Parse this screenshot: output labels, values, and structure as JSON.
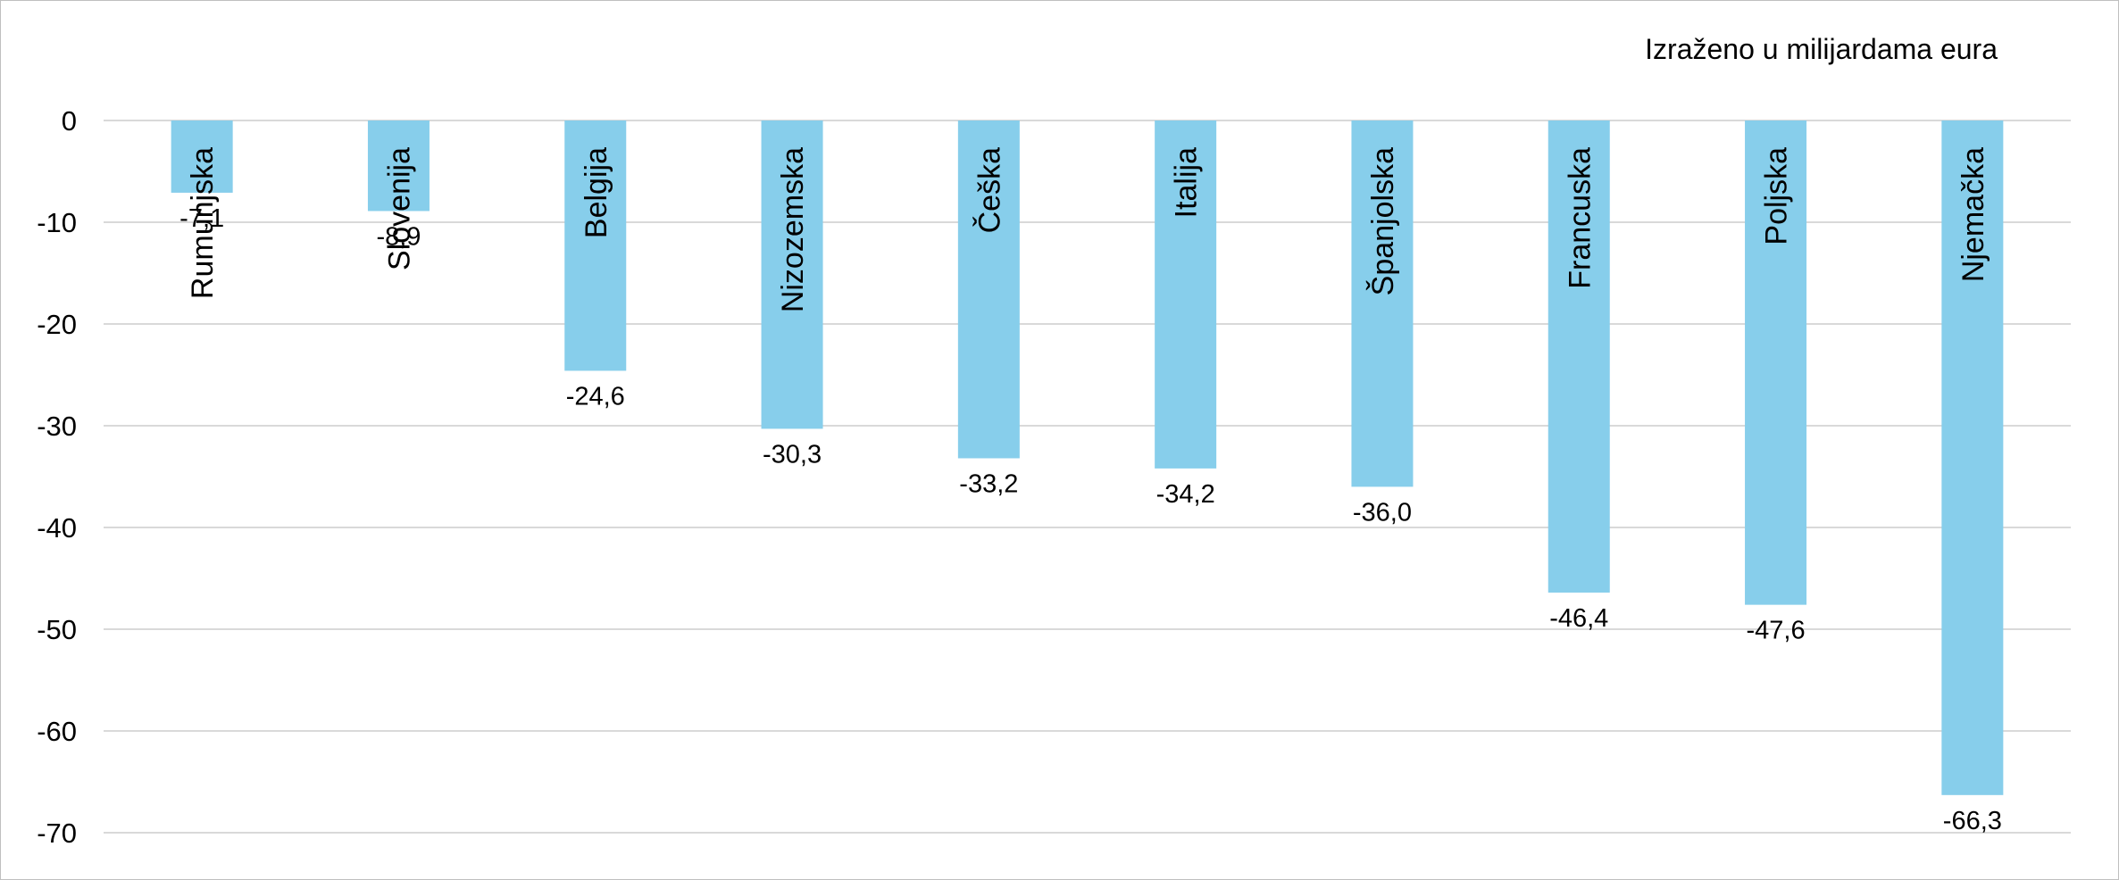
{
  "chart_data": {
    "type": "bar",
    "title": "",
    "unit_note": "Izraženo u milijardama eura",
    "categories": [
      "Rumunjska",
      "Slovenija",
      "Belgija",
      "Nizozemska",
      "Češka",
      "Italija",
      "Španjolska",
      "Francuska",
      "Poljska",
      "Njemačka"
    ],
    "values": [
      -7.1,
      -8.9,
      -24.6,
      -30.3,
      -33.2,
      -34.2,
      -36.0,
      -46.4,
      -47.6,
      -66.3
    ],
    "data_labels": [
      "-7,1",
      "-8,9",
      "-24,6",
      "-30,3",
      "-33,2",
      "-34,2",
      "-36,0",
      "-46,4",
      "-47,6",
      "-66,3"
    ],
    "yticks": [
      0,
      -10,
      -20,
      -30,
      -40,
      -50,
      -60,
      -70
    ],
    "ytick_labels": [
      "0",
      "-10",
      "-20",
      "-30",
      "-40",
      "-50",
      "-60",
      "-70"
    ],
    "ylim": [
      -70,
      0
    ],
    "grid": true,
    "legend": "none",
    "bar_color": "#87ceeb",
    "grid_color": "#d9d9d9"
  }
}
